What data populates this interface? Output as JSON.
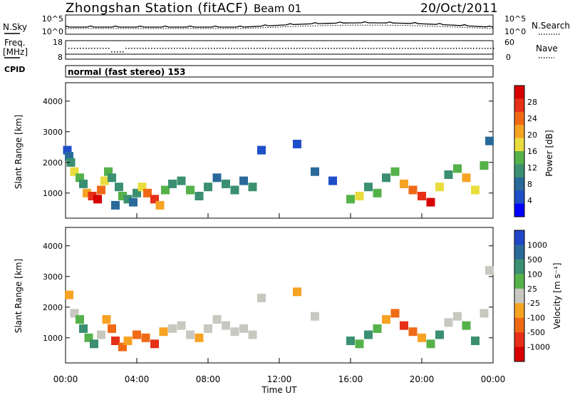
{
  "header": {
    "title": "Zhongshan Station (fitACF)",
    "beam": "Beam 01",
    "date": "20/Oct/2011"
  },
  "strip1": {
    "left_label": "N.Sky",
    "right_label": "N.Search",
    "y_ticks": [
      "10^5",
      "10^0"
    ]
  },
  "strip2": {
    "left_label": "Freq.",
    "left_unit": "[MHz]",
    "left_ticks": [
      "18",
      "8"
    ],
    "right_label": "Nave",
    "right_ticks": [
      "60",
      "0"
    ]
  },
  "cpid": {
    "label": "CPID",
    "text": "normal (fast stereo) 153"
  },
  "x_axis": {
    "label": "Time UT",
    "ticks": [
      "00:00",
      "04:00",
      "08:00",
      "12:00",
      "16:00",
      "20:00",
      "00:00"
    ]
  },
  "chart_data": [
    {
      "type": "heatmap",
      "name": "power-panel",
      "quantity": "Power",
      "ylabel": "Slant Range [km]",
      "y_ticks": [
        "1000",
        "2000",
        "3000",
        "4000"
      ],
      "ylim": [
        180,
        4600
      ],
      "colorbar_label": "Power [dB]",
      "colorbar_ticks": [
        "4",
        "8",
        "12",
        "16",
        "20",
        "24",
        "28"
      ],
      "colorbar_colors": [
        "#0000ff",
        "#1f4fc8",
        "#2a6a9a",
        "#3a9070",
        "#55b24a",
        "#e9dc3c",
        "#f6a324",
        "#f06a15",
        "#e63018",
        "#d60000"
      ],
      "cells": [
        [
          0.1,
          2400,
          1
        ],
        [
          0.2,
          2200,
          2
        ],
        [
          0.3,
          2000,
          3
        ],
        [
          0.5,
          1700,
          5
        ],
        [
          0.8,
          1500,
          4
        ],
        [
          1.0,
          1300,
          3
        ],
        [
          1.2,
          1000,
          6
        ],
        [
          1.5,
          900,
          8
        ],
        [
          1.8,
          800,
          9
        ],
        [
          2.0,
          1100,
          7
        ],
        [
          2.2,
          1400,
          5
        ],
        [
          2.4,
          1700,
          4
        ],
        [
          2.6,
          1500,
          3
        ],
        [
          2.8,
          600,
          2
        ],
        [
          3.0,
          1200,
          3
        ],
        [
          3.2,
          900,
          4
        ],
        [
          3.5,
          800,
          3
        ],
        [
          3.8,
          700,
          2
        ],
        [
          4.0,
          1000,
          3
        ],
        [
          4.3,
          1200,
          5
        ],
        [
          4.6,
          1000,
          7
        ],
        [
          5.0,
          800,
          8
        ],
        [
          5.3,
          600,
          6
        ],
        [
          5.6,
          1100,
          4
        ],
        [
          6.0,
          1300,
          3
        ],
        [
          6.5,
          1400,
          3
        ],
        [
          7.0,
          1100,
          4
        ],
        [
          7.5,
          900,
          3
        ],
        [
          8.0,
          1200,
          3
        ],
        [
          8.5,
          1500,
          2
        ],
        [
          9.0,
          1300,
          3
        ],
        [
          9.5,
          1100,
          3
        ],
        [
          10.0,
          1400,
          2
        ],
        [
          10.5,
          1200,
          3
        ],
        [
          11.0,
          2400,
          1
        ],
        [
          13.0,
          2600,
          1
        ],
        [
          14.0,
          1700,
          2
        ],
        [
          15.0,
          1400,
          1
        ],
        [
          16.0,
          800,
          4
        ],
        [
          16.5,
          900,
          5
        ],
        [
          17.0,
          1200,
          3
        ],
        [
          17.5,
          1000,
          4
        ],
        [
          18.0,
          1500,
          3
        ],
        [
          18.5,
          1700,
          4
        ],
        [
          19.0,
          1300,
          6
        ],
        [
          19.5,
          1100,
          7
        ],
        [
          20.0,
          900,
          8
        ],
        [
          20.5,
          700,
          9
        ],
        [
          21.0,
          1200,
          5
        ],
        [
          21.5,
          1600,
          3
        ],
        [
          22.0,
          1800,
          4
        ],
        [
          22.5,
          1500,
          6
        ],
        [
          23.0,
          1100,
          5
        ],
        [
          23.5,
          1900,
          4
        ],
        [
          23.8,
          2700,
          2
        ]
      ]
    },
    {
      "type": "heatmap",
      "name": "velocity-panel",
      "quantity": "Velocity",
      "ylabel": "Slant Range [km]",
      "y_ticks": [
        "1000",
        "2000",
        "3000",
        "4000"
      ],
      "ylim": [
        180,
        4600
      ],
      "colorbar_label": "Velocity [m s⁻¹]",
      "colorbar_ticks": [
        "1000",
        "500",
        "100",
        "25",
        "-25",
        "-100",
        "-500",
        "-1000"
      ],
      "colorbar_colors": [
        "#1f47c8",
        "#2a6a9a",
        "#3a9070",
        "#55b24a",
        "#c8c8c0",
        "#f6a324",
        "#f06a15",
        "#e63018",
        "#d60000"
      ],
      "cells": [
        [
          0.2,
          2400,
          5
        ],
        [
          0.5,
          1800,
          4
        ],
        [
          0.8,
          1600,
          3
        ],
        [
          1.0,
          1300,
          2
        ],
        [
          1.3,
          1000,
          3
        ],
        [
          1.6,
          800,
          2
        ],
        [
          2.0,
          1100,
          4
        ],
        [
          2.3,
          1600,
          5
        ],
        [
          2.6,
          1300,
          6
        ],
        [
          2.8,
          900,
          7
        ],
        [
          3.2,
          700,
          6
        ],
        [
          3.5,
          900,
          5
        ],
        [
          4.0,
          1100,
          6
        ],
        [
          4.5,
          1000,
          6
        ],
        [
          5.0,
          800,
          7
        ],
        [
          5.5,
          1200,
          5
        ],
        [
          6.0,
          1300,
          4
        ],
        [
          6.5,
          1400,
          4
        ],
        [
          7.0,
          1100,
          4
        ],
        [
          7.5,
          1000,
          5
        ],
        [
          8.0,
          1300,
          4
        ],
        [
          8.5,
          1600,
          4
        ],
        [
          9.0,
          1400,
          4
        ],
        [
          9.5,
          1200,
          4
        ],
        [
          10.0,
          1300,
          4
        ],
        [
          10.5,
          1100,
          4
        ],
        [
          11.0,
          2300,
          4
        ],
        [
          13.0,
          2500,
          5
        ],
        [
          14.0,
          1700,
          4
        ],
        [
          16.0,
          900,
          2
        ],
        [
          16.5,
          800,
          3
        ],
        [
          17.0,
          1100,
          2
        ],
        [
          17.5,
          1300,
          3
        ],
        [
          18.0,
          1600,
          5
        ],
        [
          18.5,
          1800,
          6
        ],
        [
          19.0,
          1400,
          7
        ],
        [
          19.5,
          1200,
          6
        ],
        [
          20.0,
          1000,
          5
        ],
        [
          20.5,
          800,
          3
        ],
        [
          21.0,
          1100,
          2
        ],
        [
          21.5,
          1500,
          4
        ],
        [
          22.0,
          1700,
          4
        ],
        [
          22.5,
          1400,
          3
        ],
        [
          23.0,
          900,
          2
        ],
        [
          23.5,
          1800,
          4
        ],
        [
          23.8,
          3200,
          4
        ]
      ]
    }
  ]
}
